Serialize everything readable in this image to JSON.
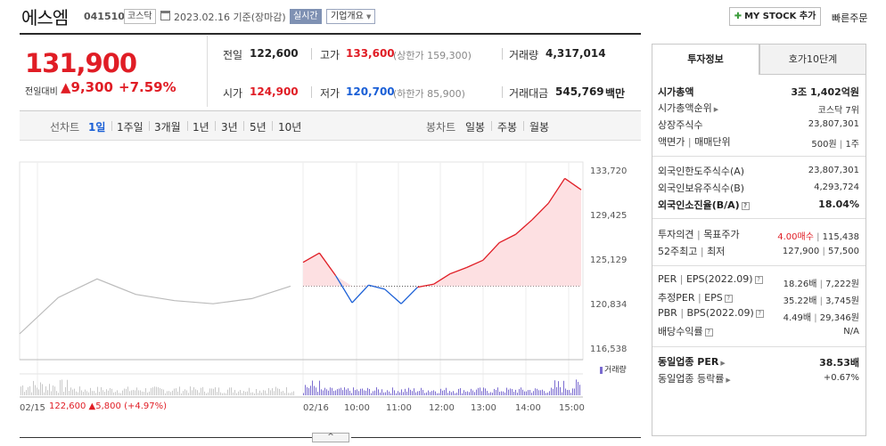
{
  "header": {
    "name": "에스엠",
    "code": "041510",
    "market": "코스닥",
    "date": "2023.02.16 기준(장마감)",
    "realtime": "실시간",
    "company_overview": "기업개요",
    "mystock": "MY STOCK 추가",
    "quick_order": "빠른주문"
  },
  "price": {
    "current": "131,900",
    "change_label": "전일대비",
    "change_amount": "9,300",
    "change_pct": "+7.59%"
  },
  "quote": {
    "prev_close_label": "전일",
    "prev_close": "122,600",
    "high_label": "고가",
    "high": "133,600",
    "upper_limit": "(상한가 159,300)",
    "volume_label": "거래량",
    "volume": "4,317,014",
    "open_label": "시가",
    "open": "124,900",
    "low_label": "저가",
    "low": "120,700",
    "lower_limit": "(하한가 85,900)",
    "turnover_label": "거래대금",
    "turnover": "545,769",
    "turnover_unit": "백만"
  },
  "toolbar": {
    "line_label": "선차트",
    "line_periods": [
      "1일",
      "1주일",
      "3개월",
      "1년",
      "3년",
      "5년",
      "10년"
    ],
    "candle_label": "봉차트",
    "candle_periods": [
      "일봉",
      "주봉",
      "월봉"
    ]
  },
  "chart": {
    "volume_legend": "거래량",
    "y_ticks": [
      "133,720",
      "129,425",
      "125,129",
      "120,834",
      "116,538"
    ],
    "x_labels": [
      "02/15",
      "02/16",
      "10:00",
      "11:00",
      "12:00",
      "13:00",
      "14:00",
      "15:00"
    ],
    "prev_day_info": "122,600",
    "prev_day_change": "5,800",
    "prev_day_pct": "(+4.97%)",
    "collapse_icon": "^"
  },
  "chart_data": {
    "type": "line",
    "ylim": [
      116538,
      133720
    ],
    "y_ticks": [
      133720,
      129425,
      125129,
      120834,
      116538
    ],
    "reference_price": 122600,
    "series": [
      {
        "x": [
          "02/15 09:00",
          "02/15 09:20",
          "02/15 10:00",
          "02/15 11:00",
          "02/15 12:00",
          "02/15 13:00",
          "02/15 14:00",
          "02/15 15:30"
        ],
        "values": [
          118000,
          121500,
          123300,
          121800,
          121200,
          120900,
          121400,
          122600
        ]
      },
      {
        "x": [
          "09:00",
          "09:10",
          "09:30",
          "09:45",
          "10:00",
          "10:30",
          "10:45",
          "11:00",
          "11:30",
          "12:00",
          "12:30",
          "13:00",
          "13:30",
          "14:00",
          "14:30",
          "15:00",
          "15:10",
          "15:30"
        ],
        "values": [
          124900,
          125800,
          123600,
          121000,
          122700,
          122300,
          120900,
          122500,
          122800,
          123800,
          124400,
          125100,
          126800,
          127600,
          129000,
          130600,
          133000,
          131900
        ]
      }
    ]
  },
  "info": {
    "tab_active": "투자정보",
    "tab_other": "호가10단계",
    "market_cap_label": "시가총액",
    "market_cap": "3조 1,402억원",
    "market_cap_rank_label": "시가총액순위",
    "market_cap_rank": "코스닥 7위",
    "shares_label": "상장주식수",
    "shares": "23,807,301",
    "par_label": "액면가",
    "par_unit_label": "매매단위",
    "par": "500원",
    "trade_unit": "1주",
    "foreign_limit_label": "외국인한도주식수(A)",
    "foreign_limit": "23,807,301",
    "foreign_hold_label": "외국인보유주식수(B)",
    "foreign_hold": "4,293,724",
    "foreign_ratio_label": "외국인소진율(B/A)",
    "foreign_ratio": "18.04%",
    "opinion_label": "투자의견",
    "target_label": "목표주가",
    "opinion": "4.00매수",
    "target": "115,438",
    "w52_high_label": "52주최고",
    "w52_low_label": "최저",
    "w52_high": "127,900",
    "w52_low": "57,500",
    "per_label": "PER",
    "eps_label": "EPS(2022.09)",
    "per": "18.26배",
    "eps": "7,222원",
    "est_per_label": "추정PER",
    "est_eps_label": "EPS",
    "est_per": "35.22배",
    "est_eps": "3,745원",
    "pbr_label": "PBR",
    "bps_label": "BPS(2022.09)",
    "pbr": "4.49배",
    "bps": "29,346원",
    "dividend_label": "배당수익률",
    "dividend": "N/A",
    "sector_per_label": "동일업종 PER",
    "sector_per": "38.53배",
    "sector_change_label": "동일업종 등락률",
    "sector_change": "+0.67%"
  },
  "colors": {
    "up": "#e01d25",
    "down": "#1a5fd6",
    "volume": "#7a6bd0"
  }
}
